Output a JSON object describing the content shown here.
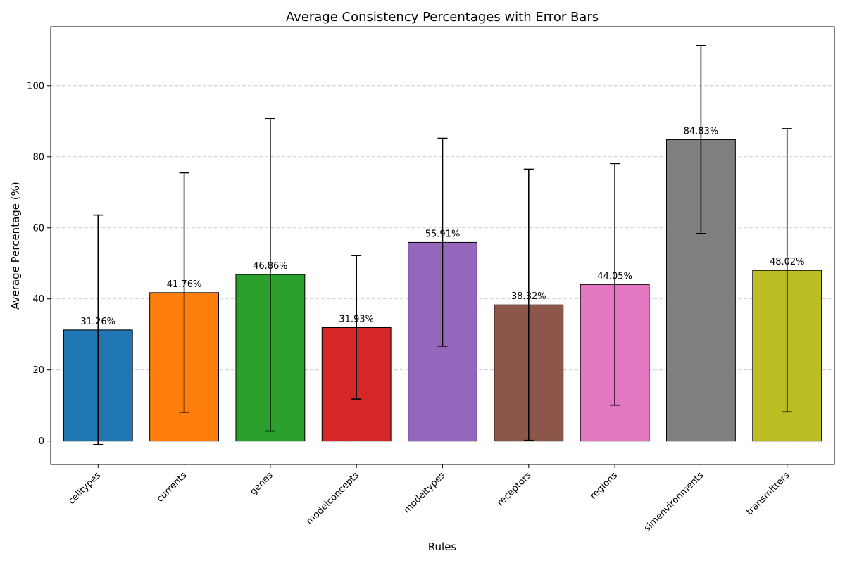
{
  "chart_data": {
    "type": "bar",
    "title": "Average Consistency Percentages with Error Bars",
    "xlabel": "Rules",
    "ylabel": "Average Percentage (%)",
    "categories": [
      "celltypes",
      "currents",
      "genes",
      "modelconcepts",
      "modeltypes",
      "receptors",
      "regions",
      "simenvironments",
      "transmitters"
    ],
    "values": [
      31.26,
      41.76,
      46.86,
      31.93,
      55.91,
      38.32,
      44.05,
      84.83,
      48.02
    ],
    "value_labels": [
      "31.26%",
      "41.76%",
      "46.86%",
      "31.93%",
      "55.91%",
      "38.32%",
      "44.05%",
      "84.83%",
      "48.02%"
    ],
    "error_low": [
      -1.0,
      8.1,
      2.8,
      11.8,
      26.7,
      0.2,
      10.1,
      58.4,
      8.2
    ],
    "error_high": [
      63.6,
      75.5,
      90.8,
      52.2,
      85.2,
      76.5,
      78.1,
      111.3,
      87.9
    ],
    "colors": [
      "#1f77b4",
      "#ff7f0e",
      "#2ca02c",
      "#d62728",
      "#9467bd",
      "#8c564b",
      "#e377c2",
      "#7f7f7f",
      "#bcbd22"
    ],
    "ylim": [
      -6.6,
      116.6
    ],
    "yticks": [
      0,
      20,
      40,
      60,
      80,
      100
    ],
    "grid": "y-dashed",
    "legend": "none"
  }
}
